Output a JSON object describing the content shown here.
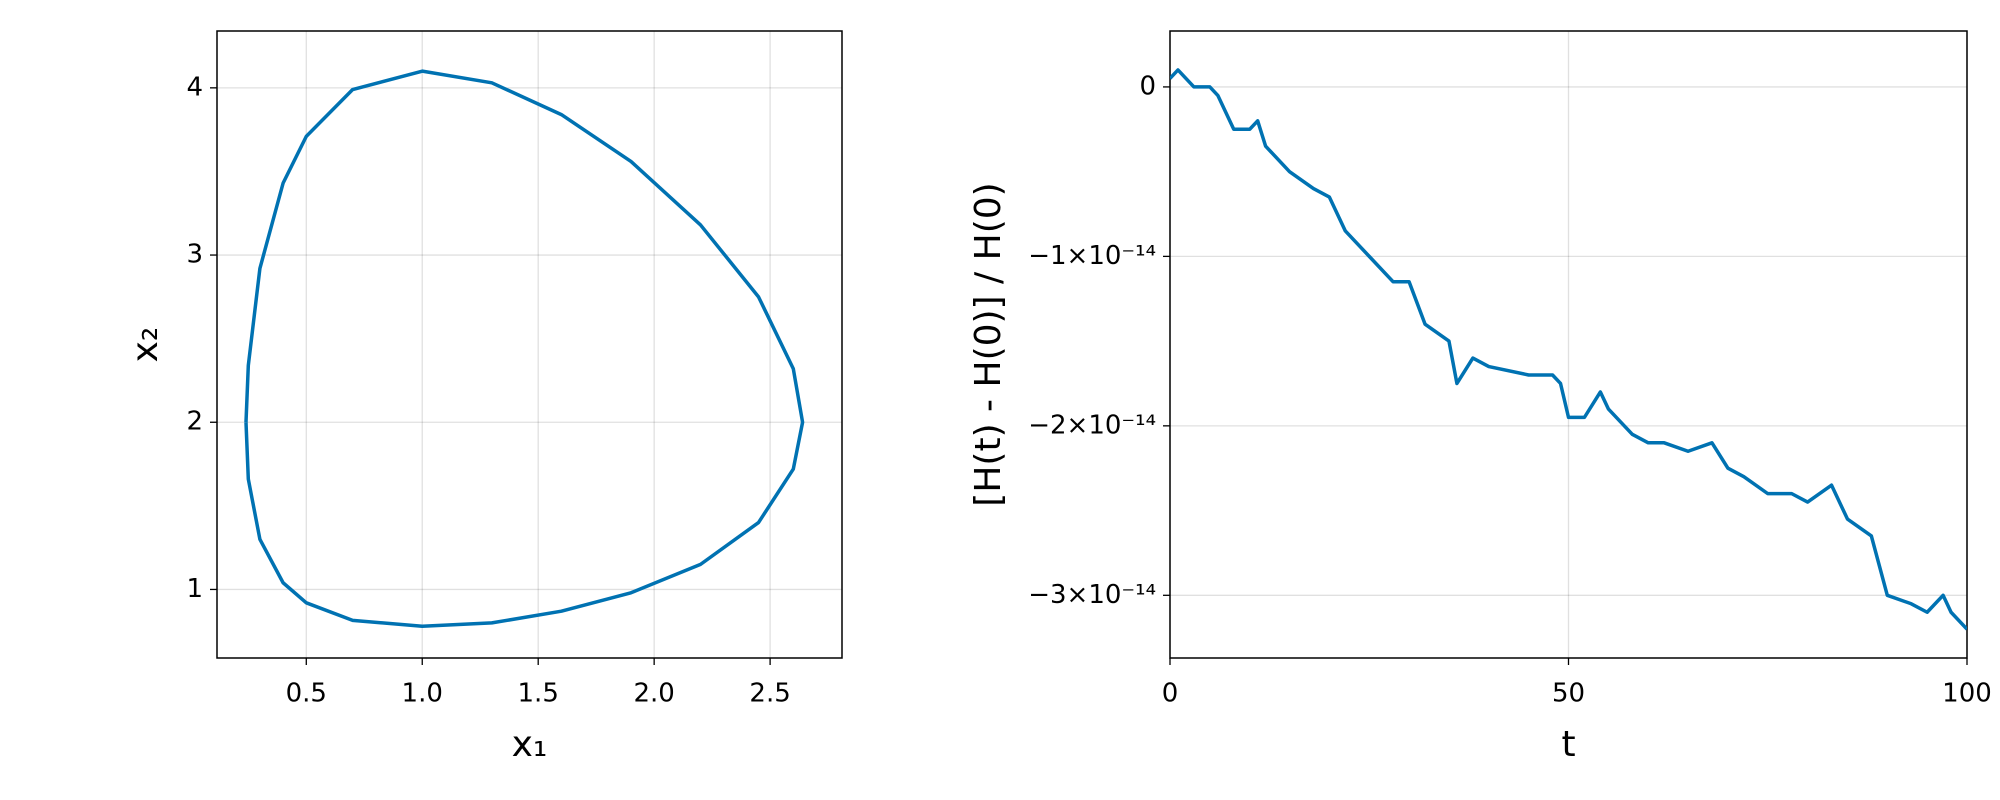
{
  "chart_data": [
    {
      "type": "line",
      "xlabel": "x₁",
      "ylabel": "x₂",
      "color": "#0072b2",
      "grid": true,
      "xlim": [
        0.115,
        2.81
      ],
      "ylim": [
        0.59,
        4.34
      ],
      "xticks": [
        0.5,
        {
          "value": 1,
          "label": "1.0"
        },
        1.5,
        {
          "value": 2,
          "label": "2.0"
        },
        2.5
      ],
      "yticks": [
        1,
        2,
        3,
        4
      ],
      "x": [
        0.24,
        0.25,
        0.3,
        0.4,
        0.5,
        0.7,
        1,
        1.3,
        1.6,
        1.9,
        2.2,
        2.45,
        2.6,
        2.64,
        2.6,
        2.45,
        2.2,
        1.9,
        1.6,
        1.3,
        1,
        0.7,
        0.5,
        0.4,
        0.3,
        0.25,
        0.24
      ],
      "values": [
        2,
        2.34,
        2.92,
        3.43,
        3.71,
        3.99,
        4.1,
        4.03,
        3.84,
        3.56,
        3.18,
        2.75,
        2.32,
        2,
        1.72,
        1.4,
        1.15,
        0.98,
        0.87,
        0.8,
        0.78,
        0.815,
        0.92,
        1.04,
        1.3,
        1.66,
        2
      ]
    },
    {
      "type": "line",
      "xlabel": "t",
      "ylabel": "[H(t) - H(0)] / H(0)",
      "color": "#0072b2",
      "grid": true,
      "xlim": [
        0,
        100
      ],
      "ylim": [
        -3.37e-14,
        3.3e-15
      ],
      "xticks": [
        0,
        50,
        100
      ],
      "yticks": [
        0,
        {
          "value": -1e-14,
          "label": "−1×10⁻¹⁴"
        },
        {
          "value": -2e-14,
          "label": "−2×10⁻¹⁴"
        },
        {
          "value": -3e-14,
          "label": "−3×10⁻¹⁴"
        }
      ],
      "x": [
        0,
        1,
        3,
        5,
        6,
        8,
        10,
        11,
        12,
        15,
        18,
        20,
        22,
        25,
        28,
        30,
        32,
        35,
        36,
        38,
        40,
        45,
        48,
        49,
        50,
        52,
        54,
        55,
        58,
        60,
        62,
        65,
        68,
        70,
        72,
        75,
        78,
        80,
        83,
        85,
        88,
        90,
        93,
        95,
        97,
        98,
        100
      ],
      "values": [
        5e-16,
        1e-15,
        0,
        0,
        -5e-16,
        -2.5e-15,
        -2.5e-15,
        -2e-15,
        -3.5e-15,
        -5e-15,
        -6e-15,
        -6.5e-15,
        -8.5e-15,
        -1e-14,
        -1.15e-14,
        -1.15e-14,
        -1.4e-14,
        -1.5e-14,
        -1.75e-14,
        -1.6e-14,
        -1.65e-14,
        -1.7e-14,
        -1.7e-14,
        -1.75e-14,
        -1.95e-14,
        -1.95e-14,
        -1.8e-14,
        -1.9e-14,
        -2.05e-14,
        -2.1e-14,
        -2.1e-14,
        -2.15e-14,
        -2.1e-14,
        -2.25e-14,
        -2.3e-14,
        -2.4e-14,
        -2.4e-14,
        -2.45e-14,
        -2.35e-14,
        -2.55e-14,
        -2.65e-14,
        -3e-14,
        -3.05e-14,
        -3.1e-14,
        -3e-14,
        -3.1e-14,
        -3.2e-14
      ]
    }
  ]
}
